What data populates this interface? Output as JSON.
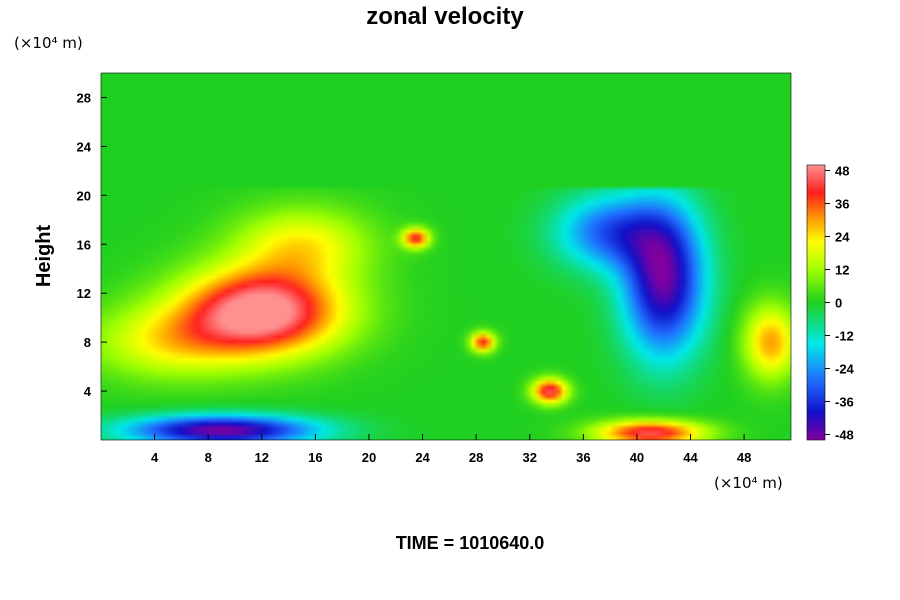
{
  "chart_data": {
    "type": "heatmap",
    "title": "zonal velocity",
    "ylabel": "Height",
    "xlabel": "",
    "x_unit": "(×10⁴ m)",
    "y_unit": "(×10⁴ m)",
    "xlim": [
      0,
      51.5
    ],
    "ylim": [
      0,
      30
    ],
    "x_ticks": [
      4,
      8,
      12,
      16,
      20,
      24,
      28,
      32,
      36,
      40,
      44,
      48
    ],
    "y_ticks": [
      4,
      8,
      12,
      16,
      20,
      24,
      28
    ],
    "colorbar": {
      "range": [
        -50,
        50
      ],
      "ticks": [
        48,
        36,
        24,
        12,
        0,
        -12,
        -24,
        -36,
        -48
      ]
    },
    "features": [
      {
        "kind": "layer",
        "region": "y > 20.5",
        "value": 0
      },
      {
        "kind": "blob",
        "x": 12,
        "y": 10.5,
        "sx": 6,
        "sy": 3.5,
        "value": 55
      },
      {
        "kind": "blob",
        "x": 5,
        "y": 8,
        "sx": 6,
        "sy": 3,
        "value": 20
      },
      {
        "kind": "blob",
        "x": 15,
        "y": 16,
        "sx": 5,
        "sy": 3,
        "value": 22
      },
      {
        "kind": "blob",
        "x": 42,
        "y": 13,
        "sx": 3,
        "sy": 6,
        "value": -48
      },
      {
        "kind": "blob",
        "x": 38,
        "y": 17,
        "sx": 4,
        "sy": 3,
        "value": -30
      },
      {
        "kind": "blob",
        "x": 9,
        "y": 0.8,
        "sx": 7,
        "sy": 1.2,
        "value": -50
      },
      {
        "kind": "blob",
        "x": 41,
        "y": 0.6,
        "sx": 4,
        "sy": 1,
        "value": 45
      },
      {
        "kind": "blob",
        "x": 33.5,
        "y": 4,
        "sx": 1.3,
        "sy": 1,
        "value": 45
      },
      {
        "kind": "blob",
        "x": 28.5,
        "y": 8,
        "sx": 0.9,
        "sy": 0.8,
        "value": 40
      },
      {
        "kind": "blob",
        "x": 23.5,
        "y": 16.5,
        "sx": 1,
        "sy": 0.8,
        "value": 40
      },
      {
        "kind": "blob",
        "x": 50,
        "y": 8,
        "sx": 2,
        "sy": 3,
        "value": 30
      }
    ]
  },
  "time_label": "TIME = 1010640.0"
}
